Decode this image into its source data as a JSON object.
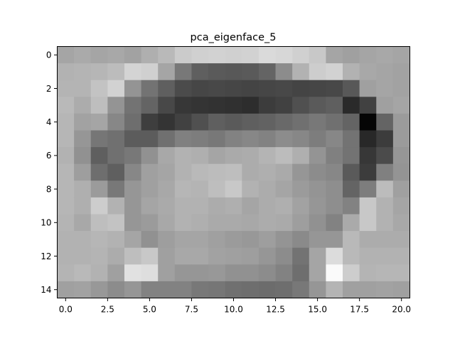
{
  "chart_data": {
    "type": "heatmap",
    "title": "pca_eigenface_5",
    "xlabel": "",
    "ylabel": "",
    "colormap": "gray",
    "grid": false,
    "n_rows": 15,
    "n_cols": 21,
    "xlim": [
      -0.5,
      20.5
    ],
    "ylim": [
      14.5,
      -0.5
    ],
    "x_ticks": [
      0,
      2.5,
      5,
      7.5,
      10,
      12.5,
      15,
      17.5,
      20
    ],
    "x_tick_labels": [
      "0.0",
      "2.5",
      "5.0",
      "7.5",
      "10.0",
      "12.5",
      "15.0",
      "17.5",
      "20.0"
    ],
    "y_ticks": [
      0,
      2,
      4,
      6,
      8,
      10,
      12,
      14
    ],
    "y_tick_labels": [
      "0",
      "2",
      "4",
      "6",
      "8",
      "10",
      "12",
      "14"
    ],
    "value_range": [
      0,
      255
    ],
    "values": [
      [
        165,
        170,
        165,
        168,
        162,
        175,
        185,
        203,
        208,
        210,
        208,
        210,
        218,
        215,
        208,
        200,
        165,
        160,
        165,
        168,
        165
      ],
      [
        178,
        180,
        182,
        188,
        212,
        208,
        165,
        120,
        95,
        90,
        88,
        90,
        100,
        140,
        178,
        205,
        210,
        178,
        168,
        165,
        162
      ],
      [
        180,
        180,
        195,
        210,
        148,
        115,
        95,
        75,
        70,
        72,
        70,
        68,
        70,
        72,
        68,
        70,
        72,
        88,
        160,
        165,
        162
      ],
      [
        185,
        172,
        190,
        148,
        115,
        100,
        72,
        55,
        52,
        50,
        48,
        45,
        60,
        65,
        80,
        90,
        95,
        42,
        65,
        160,
        165
      ],
      [
        182,
        162,
        165,
        135,
        110,
        62,
        52,
        65,
        80,
        95,
        90,
        95,
        98,
        105,
        112,
        120,
        112,
        100,
        5,
        100,
        155
      ],
      [
        182,
        150,
        118,
        112,
        92,
        92,
        112,
        128,
        125,
        120,
        130,
        135,
        130,
        140,
        135,
        125,
        135,
        115,
        40,
        60,
        155
      ],
      [
        178,
        145,
        95,
        112,
        120,
        145,
        168,
        178,
        175,
        165,
        170,
        172,
        180,
        188,
        175,
        148,
        128,
        115,
        55,
        75,
        150
      ],
      [
        182,
        158,
        110,
        95,
        135,
        160,
        165,
        178,
        185,
        188,
        190,
        172,
        175,
        170,
        150,
        140,
        135,
        90,
        60,
        128,
        148
      ],
      [
        182,
        175,
        155,
        120,
        150,
        160,
        168,
        182,
        180,
        190,
        200,
        178,
        172,
        165,
        155,
        148,
        142,
        100,
        125,
        188,
        160
      ],
      [
        182,
        175,
        205,
        178,
        150,
        165,
        170,
        178,
        178,
        172,
        175,
        165,
        172,
        175,
        162,
        150,
        142,
        130,
        200,
        178,
        165
      ],
      [
        180,
        168,
        190,
        195,
        150,
        155,
        168,
        178,
        175,
        170,
        170,
        168,
        172,
        170,
        158,
        145,
        130,
        170,
        200,
        178,
        168
      ],
      [
        178,
        178,
        182,
        178,
        165,
        145,
        158,
        165,
        165,
        160,
        155,
        152,
        158,
        148,
        138,
        150,
        150,
        185,
        172,
        172,
        172
      ],
      [
        178,
        178,
        180,
        172,
        190,
        200,
        160,
        168,
        168,
        162,
        160,
        158,
        150,
        140,
        115,
        165,
        220,
        185,
        178,
        178,
        178
      ],
      [
        180,
        185,
        178,
        160,
        225,
        222,
        160,
        150,
        150,
        152,
        145,
        145,
        140,
        130,
        110,
        165,
        250,
        205,
        180,
        182,
        182
      ],
      [
        160,
        162,
        152,
        140,
        150,
        130,
        130,
        130,
        120,
        118,
        112,
        110,
        108,
        110,
        120,
        150,
        180,
        160,
        160,
        162,
        160
      ]
    ]
  }
}
